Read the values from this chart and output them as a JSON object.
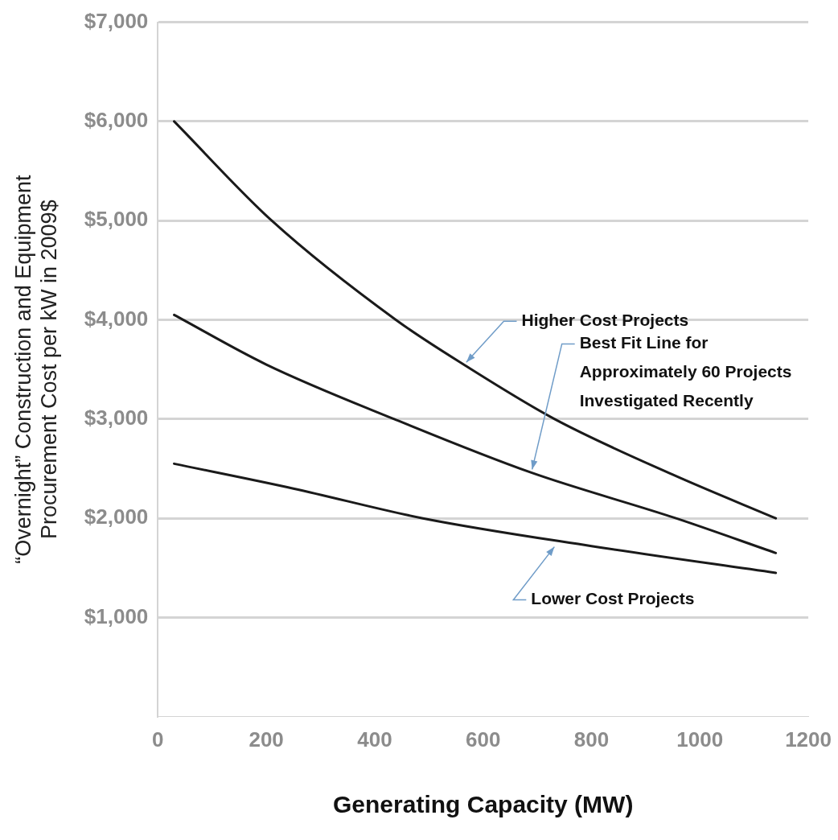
{
  "chart_data": {
    "type": "line",
    "xlabel": "Generating Capacity (MW)",
    "ylabel": "“Overnight” Construction and Equipment\nProcurement Cost per kW in 2009$",
    "series": [
      {
        "color": "#1a1a1a",
        "x": [
          30,
          210,
          439,
          567,
          732,
          950,
          1140
        ],
        "values": [
          6000,
          5000,
          4000,
          3540,
          3000,
          2440,
          2000
        ]
      },
      {
        "color": "#1a1a1a",
        "x": [
          30,
          200,
          436,
          689,
          956,
          1140
        ],
        "values": [
          4050,
          3550,
          3000,
          2460,
          2000,
          1650
        ]
      },
      {
        "color": "#1a1a1a",
        "x": [
          30,
          250,
          489,
          800,
          1140
        ],
        "values": [
          2550,
          2300,
          2000,
          1720,
          1450
        ]
      }
    ],
    "xlim": [
      0,
      1200
    ],
    "xticks": [
      0,
      200,
      400,
      600,
      800,
      1000,
      1200
    ],
    "ylim": [
      0,
      7000
    ],
    "yticks": [
      {
        "value": 1000,
        "label": "$1,000"
      },
      {
        "value": 2000,
        "label": "$2,000"
      },
      {
        "value": 3000,
        "label": "$3,000"
      },
      {
        "value": 4000,
        "label": "$4,000"
      },
      {
        "value": 5000,
        "label": "$5,000"
      },
      {
        "value": 6000,
        "label": "$6,000"
      },
      {
        "value": 7000,
        "label": "$7,000"
      }
    ],
    "grid": "y",
    "legend": false,
    "marker": "none",
    "line_style": "solid",
    "annotations": [
      {
        "text": "Higher Cost Projects",
        "x": 567,
        "y": 3540
      },
      {
        "text": "Best Fit Line for\nApproximately 60 Projects\nInvestigated Recently",
        "x": 689,
        "y": 2460
      },
      {
        "text": "Lower Cost Projects",
        "x": 733,
        "y": 1745
      }
    ]
  }
}
